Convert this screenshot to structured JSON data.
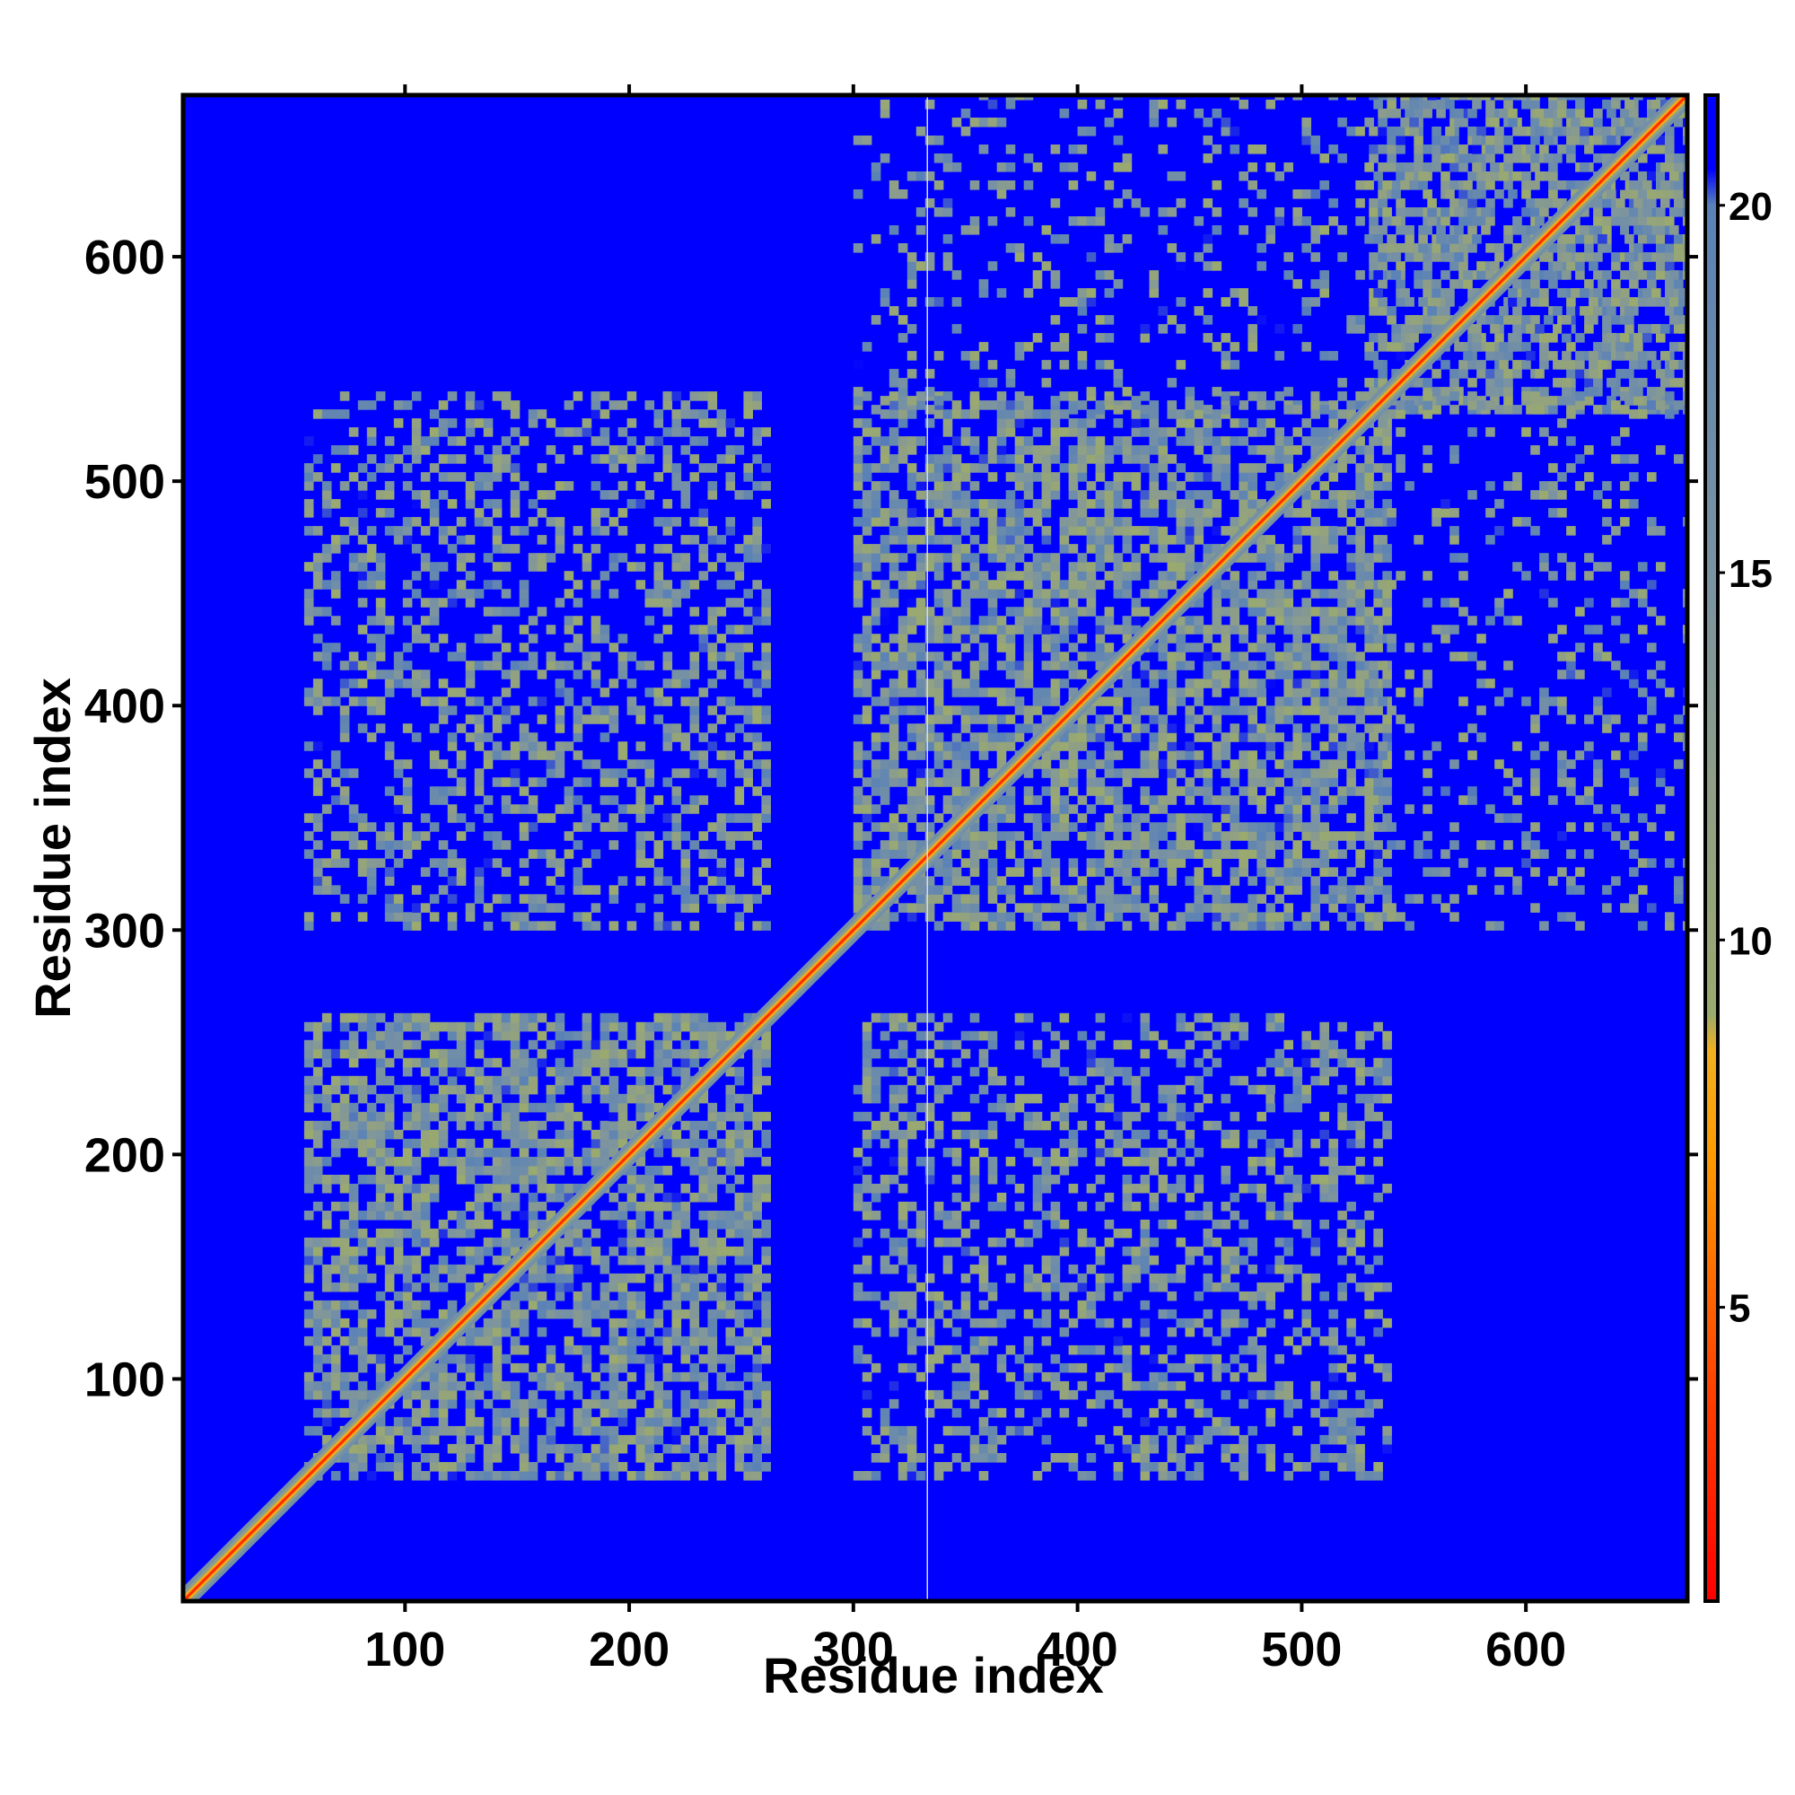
{
  "chart_data": {
    "type": "heatmap",
    "title": "",
    "xlabel": "Residue index",
    "ylabel": "Residue index",
    "xlim": [
      1,
      672
    ],
    "ylim": [
      1,
      672
    ],
    "x_ticks": [
      100,
      200,
      300,
      400,
      500,
      600
    ],
    "y_ticks": [
      100,
      200,
      300,
      400,
      500,
      600
    ],
    "colorbar": {
      "ticks": [
        5,
        10,
        15,
        20
      ],
      "range": [
        1,
        21.5
      ],
      "stops": [
        {
          "value": 1,
          "color": "#ff0000"
        },
        {
          "value": 4,
          "color": "#ff4400"
        },
        {
          "value": 7,
          "color": "#ff9900"
        },
        {
          "value": 8.5,
          "color": "#f0b020"
        },
        {
          "value": 9,
          "color": "#9aaa6e"
        },
        {
          "value": 12,
          "color": "#8f9f86"
        },
        {
          "value": 15,
          "color": "#7a93a2"
        },
        {
          "value": 20,
          "color": "#5a82b6"
        },
        {
          "value": 20.5,
          "color": "#0000ff"
        },
        {
          "value": 21.5,
          "color": "#0000ff"
        }
      ]
    },
    "background_color": "#0000ff",
    "diagonal": {
      "from": 1,
      "to": 672,
      "color": "#ff0000"
    },
    "gap_column": 333,
    "contact_blocks": [
      {
        "x": [
          55,
          260
        ],
        "y": [
          55,
          260
        ],
        "density": "high"
      },
      {
        "x": [
          300,
          540
        ],
        "y": [
          300,
          540
        ],
        "density": "high"
      },
      {
        "x": [
          530,
          672
        ],
        "y": [
          530,
          672
        ],
        "density": "high"
      },
      {
        "x": [
          55,
          260
        ],
        "y": [
          300,
          540
        ],
        "density": "medium"
      },
      {
        "x": [
          300,
          540
        ],
        "y": [
          55,
          260
        ],
        "density": "medium"
      },
      {
        "x": [
          300,
          672
        ],
        "y": [
          530,
          672
        ],
        "density": "low"
      },
      {
        "x": [
          530,
          672
        ],
        "y": [
          300,
          540
        ],
        "density": "low"
      }
    ]
  }
}
